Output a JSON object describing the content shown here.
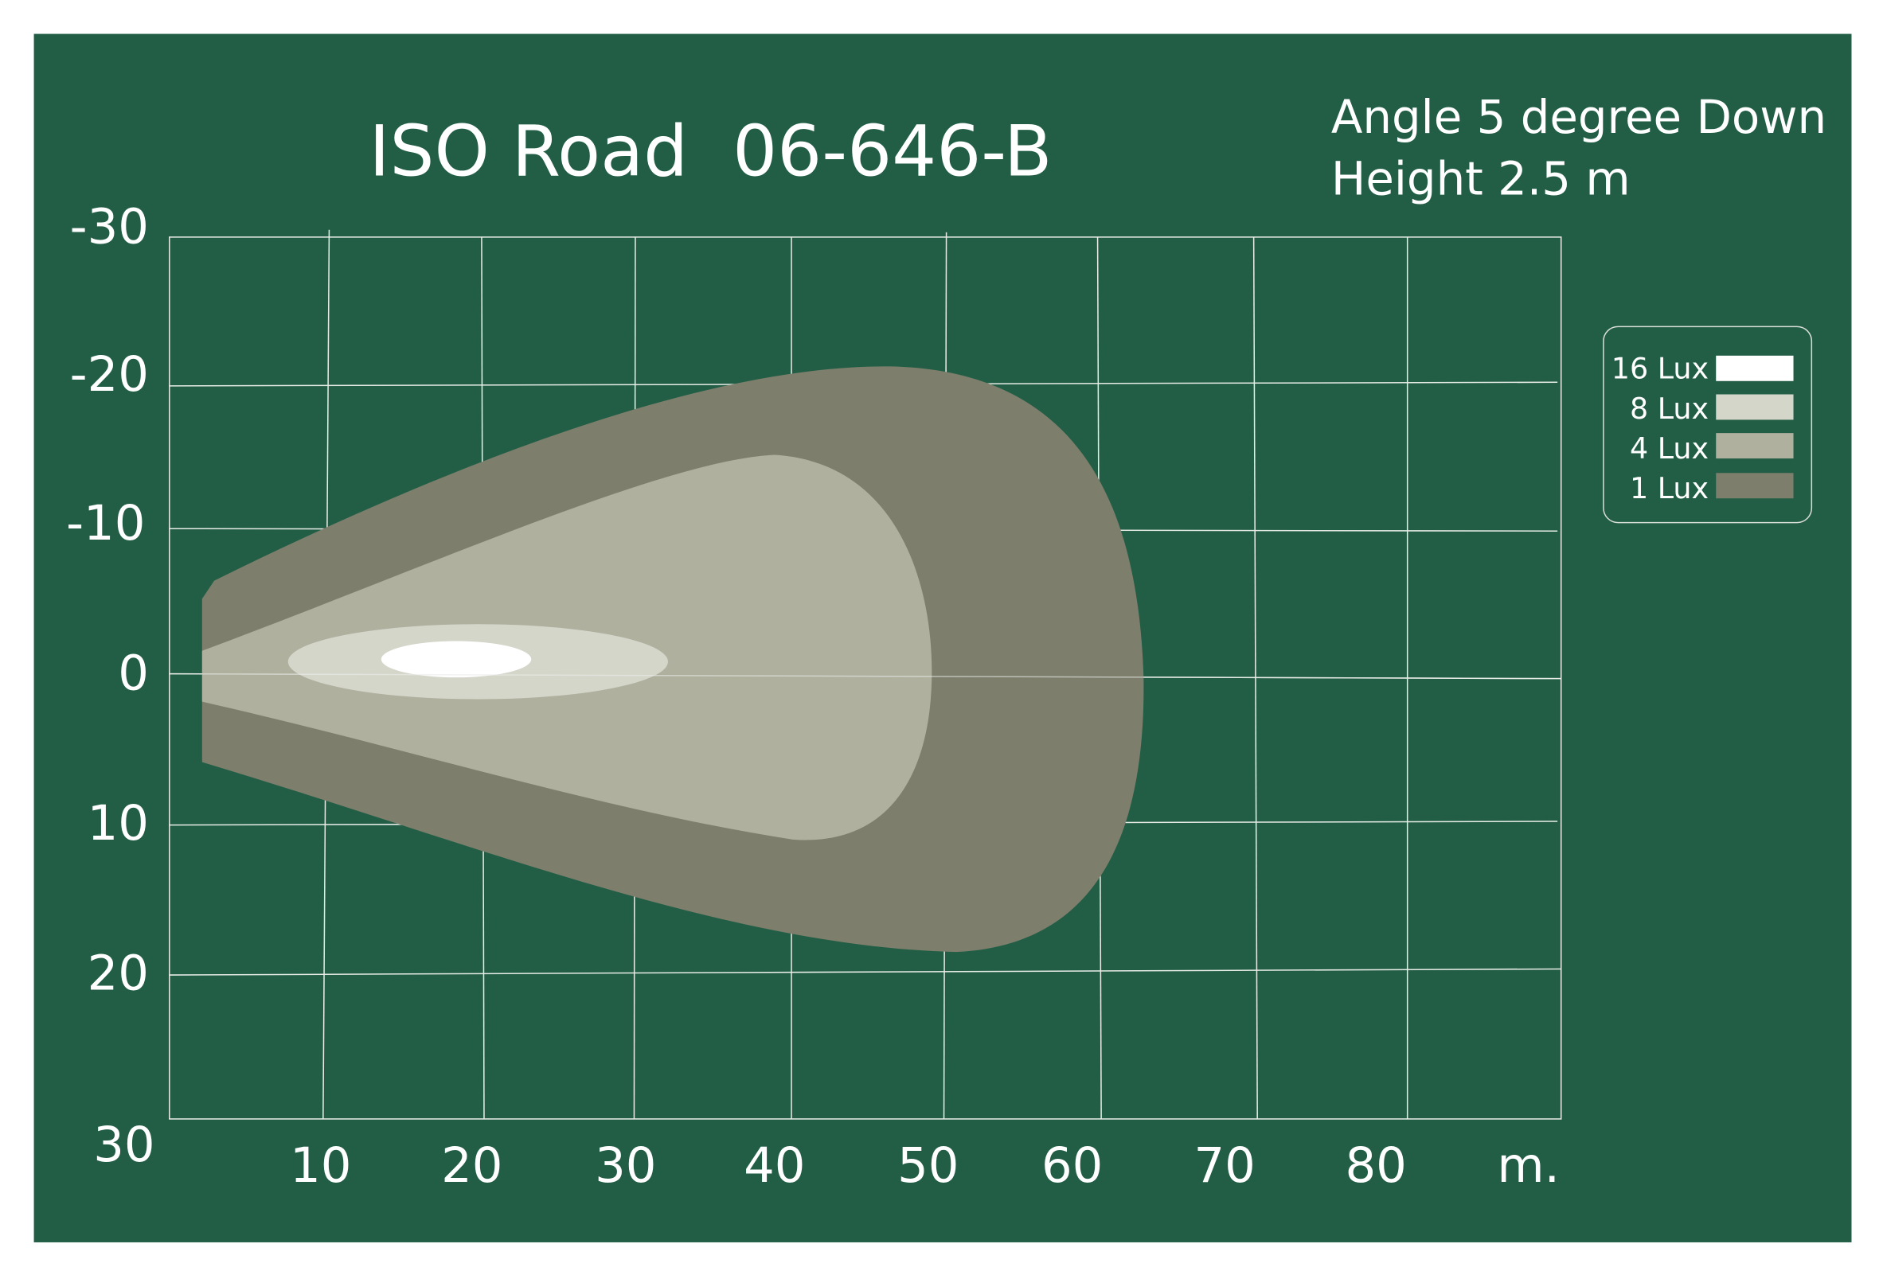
{
  "header": {
    "title": "ISO Road  06-646-B",
    "info": [
      "Angle 5 degree Down",
      "Height 2.5 m"
    ]
  },
  "axes": {
    "y_labels": [
      "-30",
      "-20",
      "-10",
      "0",
      "10",
      "20",
      "30"
    ],
    "x_labels": [
      "10",
      "20",
      "30",
      "40",
      "50",
      "60",
      "70",
      "80"
    ],
    "x_unit": "m."
  },
  "legend": {
    "items": [
      "16 Lux",
      "8 Lux",
      "4 Lux",
      "1 Lux"
    ]
  }
}
